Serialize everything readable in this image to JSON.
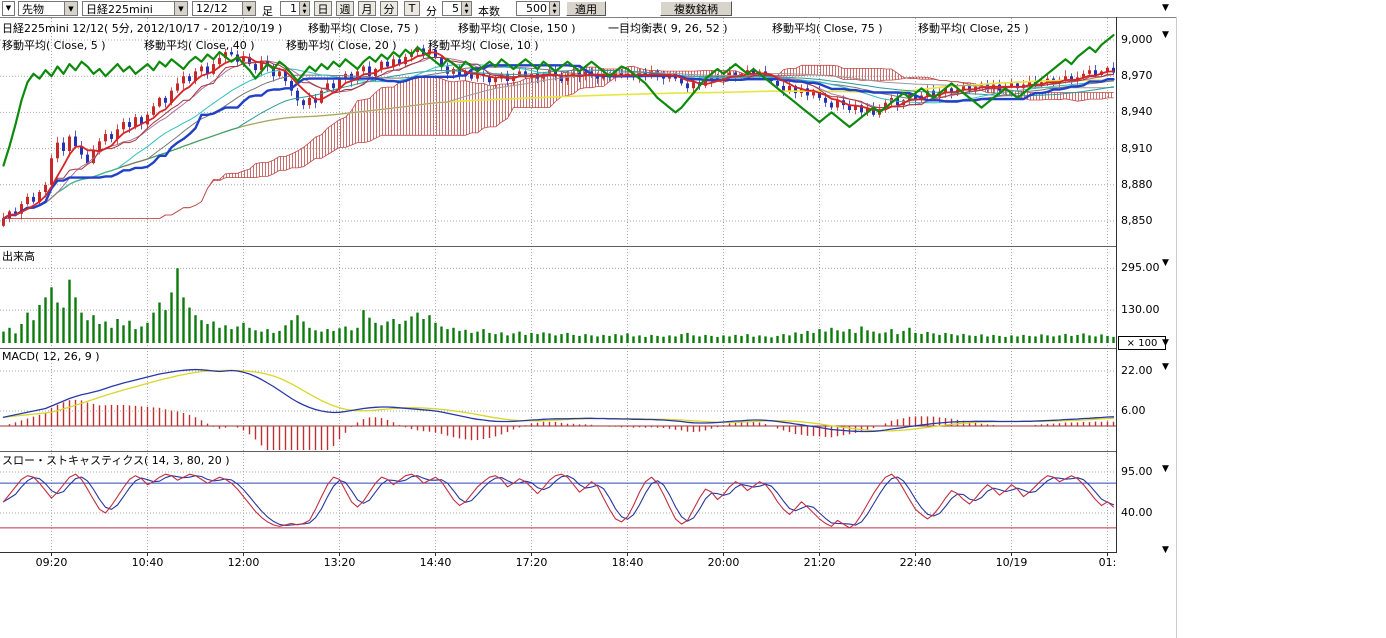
{
  "icons": {
    "down": "▼",
    "up": "▲"
  },
  "toolbar": {
    "category": "先物",
    "symbol": "日経225mini",
    "contract": "12/12",
    "bar_label": "足",
    "interval_value": "1",
    "units": [
      "日",
      "週",
      "月",
      "分"
    ],
    "tick_unit": "T",
    "minute_label": "分",
    "minute_value": "5",
    "count_label": "本数",
    "count_value": "500",
    "apply": "適用",
    "multi_symbol": "複数銘柄"
  },
  "price_panel": {
    "title": "日経225mini 12/12( 5分, 2012/10/17 - 2012/10/19 )",
    "legend_row1": [
      "移動平均( Close, 75 )",
      "移動平均( Close, 150 )",
      "一目均衡表( 9, 26, 52 )",
      "移動平均( Close, 75 )",
      "移動平均( Close, 25 )"
    ],
    "legend_row2": [
      "移動平均( Close, 5 )",
      "移動平均( Close, 40 )",
      "移動平均( Close, 20 )",
      "移動平均( Close, 10 )"
    ],
    "y_ticks": [
      "9,000",
      "8,970",
      "8,940",
      "8,910",
      "8,880",
      "8,850"
    ]
  },
  "volume_panel": {
    "label": "出来高",
    "y_ticks": [
      "295.00",
      "130.00"
    ],
    "multiplier": "× 100"
  },
  "macd_panel": {
    "label": "MACD( 12, 26, 9 )",
    "y_ticks": [
      "22.00",
      "6.00"
    ]
  },
  "stoch_panel": {
    "label": "スロー・ストキャスティクス( 14, 3, 80, 20 )",
    "y_ticks": [
      "95.00",
      "40.00"
    ]
  },
  "x_labels": [
    "09:20",
    "10:40",
    "12:00",
    "13:20",
    "14:40",
    "17:20",
    "18:40",
    "20:00",
    "21:20",
    "22:40",
    "10/19",
    "01:"
  ],
  "right_markers": [
    3,
    30,
    258,
    338,
    362,
    464,
    545
  ],
  "chart_data": {
    "type": "candlestick",
    "title": "日経225mini 12/12( 5分, 2012/10/17 - 2012/10/19 )",
    "price_axis": {
      "min": 8850,
      "max": 9000,
      "ticks": [
        9000,
        8970,
        8940,
        8910,
        8880,
        8850
      ]
    },
    "volume_axis": {
      "ticks": [
        295,
        130
      ],
      "multiplier": 100
    },
    "macd_axis": {
      "ticks": [
        22,
        6
      ]
    },
    "stoch_axis": {
      "ticks": [
        95,
        40
      ],
      "ref_lines": {
        "upper": 80,
        "lower": 20
      }
    },
    "close": [
      8852,
      8858,
      8856,
      8864,
      8870,
      8866,
      8874,
      8880,
      8902,
      8915,
      8908,
      8920,
      8912,
      8905,
      8898,
      8908,
      8916,
      8922,
      8918,
      8926,
      8932,
      8928,
      8936,
      8930,
      8938,
      8945,
      8952,
      8948,
      8958,
      8964,
      8970,
      8966,
      8974,
      8978,
      8972,
      8980,
      8985,
      8990,
      8988,
      8982,
      8986,
      8980,
      8975,
      8983,
      8978,
      8970,
      8974,
      8966,
      8958,
      8950,
      8946,
      8952,
      8948,
      8958,
      8964,
      8960,
      8968,
      8972,
      8966,
      8974,
      8978,
      8970,
      8976,
      8982,
      8978,
      8984,
      8980,
      8986,
      8990,
      8993,
      8988,
      8992,
      8985,
      8978,
      8972,
      8976,
      8970,
      8974,
      8968,
      8972,
      8970,
      8965,
      8968,
      8972,
      8966,
      8970,
      8974,
      8969,
      8972,
      8968,
      8972,
      8975,
      8970,
      8966,
      8970,
      8973,
      8970,
      8974,
      8971,
      8968,
      8972,
      8969,
      8973,
      8970,
      8972,
      8969,
      8973,
      8970,
      8974,
      8971,
      8968,
      8972,
      8968,
      8964,
      8960,
      8965,
      8962,
      8966,
      8970,
      8967,
      8970,
      8973,
      8969,
      8972,
      8975,
      8971,
      8974,
      8970,
      8966,
      8962,
      8958,
      8962,
      8956,
      8960,
      8954,
      8958,
      8952,
      8948,
      8944,
      8950,
      8946,
      8942,
      8946,
      8940,
      8944,
      8938,
      8942,
      8948,
      8952,
      8946,
      8950,
      8955,
      8950,
      8954,
      8958,
      8953,
      8957,
      8960,
      8956,
      8959,
      8962,
      8958,
      8961,
      8964,
      8960,
      8963,
      8958,
      8961,
      8964,
      8960,
      8963,
      8966,
      8962,
      8965,
      8968,
      8964,
      8967,
      8970,
      8966,
      8969,
      8972,
      8975,
      8971,
      8974,
      8977,
      8973
    ],
    "green_overlay": [
      8896,
      8912,
      8930,
      8950,
      8965,
      8972,
      8968,
      8975,
      8970,
      8978,
      8972,
      8980,
      8975,
      8982,
      8978,
      8972,
      8976,
      8970,
      8975,
      8980,
      8974,
      8978,
      8972,
      8976,
      8980,
      8975,
      8982,
      8978,
      8984,
      8980,
      8976,
      8982,
      8986,
      8982,
      8988,
      8984,
      8990,
      8986,
      8982,
      8986,
      8980,
      8975,
      8968,
      8974,
      8980,
      8976,
      8982,
      8978,
      8972,
      8966,
      8972,
      8978,
      8974,
      8980,
      8976,
      8982,
      8978,
      8984,
      8980,
      8976,
      8982,
      8986,
      8982,
      8988,
      8984,
      8990,
      8986,
      8992,
      8988,
      8994,
      8990,
      8986,
      8982,
      8978,
      8984,
      8980,
      8976,
      8982,
      8978,
      8974,
      8978,
      8982,
      8978,
      8984,
      8980,
      8976,
      8980,
      8984,
      8980,
      8976,
      8982,
      8978,
      8974,
      8978,
      8982,
      8978,
      8974,
      8978,
      8982,
      8978,
      8974,
      8970,
      8974,
      8978,
      8976,
      8972,
      8968,
      8964,
      8958,
      8952,
      8948,
      8944,
      8940,
      8944,
      8950,
      8956,
      8962,
      8968,
      8972,
      8976,
      8972,
      8976,
      8980,
      8976,
      8972,
      8976,
      8972,
      8968,
      8964,
      8960,
      8956,
      8952,
      8948,
      8944,
      8940,
      8936,
      8932,
      8936,
      8940,
      8936,
      8932,
      8928,
      8932,
      8936,
      8940,
      8944,
      8940,
      8944,
      8948,
      8952,
      8956,
      8952,
      8956,
      8960,
      8956,
      8952,
      8956,
      8960,
      8964,
      8960,
      8956,
      8952,
      8948,
      8944,
      8948,
      8952,
      8956,
      8960,
      8956,
      8952,
      8956,
      8960,
      8964,
      8968,
      8972,
      8976,
      8980,
      8984,
      8980,
      8986,
      8990,
      8994,
      8990,
      8996,
      9000,
      9004
    ],
    "volume": [
      45,
      60,
      38,
      75,
      120,
      90,
      150,
      180,
      220,
      160,
      140,
      250,
      180,
      120,
      90,
      110,
      75,
      85,
      60,
      95,
      70,
      88,
      55,
      65,
      80,
      120,
      160,
      130,
      200,
      295,
      180,
      140,
      110,
      90,
      75,
      85,
      60,
      70,
      55,
      65,
      80,
      60,
      50,
      45,
      55,
      40,
      48,
      70,
      90,
      110,
      85,
      60,
      50,
      45,
      55,
      48,
      58,
      65,
      50,
      60,
      130,
      100,
      80,
      70,
      85,
      95,
      75,
      88,
      105,
      120,
      95,
      110,
      80,
      65,
      55,
      60,
      48,
      52,
      40,
      45,
      55,
      40,
      35,
      42,
      30,
      38,
      45,
      32,
      40,
      35,
      42,
      38,
      30,
      35,
      40,
      32,
      28,
      35,
      30,
      26,
      32,
      28,
      35,
      30,
      38,
      26,
      30,
      24,
      32,
      28,
      25,
      30,
      26,
      35,
      40,
      30,
      26,
      32,
      28,
      24,
      30,
      26,
      32,
      28,
      35,
      25,
      30,
      26,
      22,
      28,
      35,
      30,
      42,
      36,
      48,
      40,
      55,
      45,
      60,
      50,
      45,
      55,
      40,
      65,
      50,
      45,
      38,
      42,
      55,
      35,
      48,
      60,
      40,
      36,
      44,
      38,
      32,
      40,
      35,
      30,
      36,
      30,
      28,
      34,
      26,
      32,
      28,
      24,
      30,
      26,
      32,
      28,
      26,
      34,
      30,
      26,
      30,
      36,
      28,
      32,
      38,
      30,
      26,
      34,
      28,
      24
    ],
    "macd": [
      3.5,
      4,
      4.5,
      5,
      5.5,
      6,
      6.5,
      7,
      8,
      9,
      10,
      11,
      11.8,
      12.5,
      13,
      13.6,
      14.2,
      15,
      15.8,
      16.5,
      17.2,
      17.8,
      18.4,
      19,
      19.6,
      20.2,
      20.8,
      21.2,
      21.6,
      22,
      22.3,
      22.5,
      22.6,
      22.5,
      22.3,
      22,
      21.8,
      22,
      22.2,
      22,
      21.5,
      20.8,
      19.8,
      18.6,
      17.2,
      15.8,
      14.2,
      12.6,
      11,
      9.6,
      8.4,
      7.4,
      6.6,
      6,
      5.6,
      5.4,
      5.5,
      5.8,
      6.2,
      6.6,
      7,
      7.3,
      7.5,
      7.6,
      7.6,
      7.5,
      7.3,
      7.1,
      6.9,
      6.7,
      6.5,
      6.3,
      6,
      5.6,
      5.1,
      4.6,
      4.1,
      3.6,
      3.1,
      2.7,
      2.4,
      2.1,
      1.9,
      1.8,
      1.8,
      1.9,
      2,
      2.2,
      2.4,
      2.5,
      2.7,
      2.8,
      2.9,
      2.9,
      2.9,
      3,
      3,
      3.1,
      3.1,
      3,
      3,
      2.9,
      2.9,
      2.8,
      2.8,
      2.7,
      2.7,
      2.6,
      2.6,
      2.5,
      2.4,
      2.2,
      2,
      1.8,
      1.5,
      1.3,
      1.2,
      1.2,
      1.3,
      1.4,
      1.6,
      1.8,
      2,
      2.1,
      2.3,
      2.4,
      2.4,
      2.3,
      2.1,
      1.8,
      1.5,
      1.2,
      0.8,
      0.5,
      0.1,
      -0.2,
      -0.6,
      -1,
      -1.4,
      -1.6,
      -1.8,
      -2,
      -2.1,
      -2.2,
      -2.2,
      -2.1,
      -1.9,
      -1.6,
      -1.2,
      -0.9,
      -0.6,
      -0.2,
      0.1,
      0.4,
      0.7,
      1,
      1.2,
      1.4,
      1.6,
      1.7,
      1.8,
      1.8,
      1.9,
      1.9,
      1.9,
      1.9,
      1.8,
      1.8,
      1.8,
      1.8,
      1.9,
      1.9,
      2,
      2.1,
      2.2,
      2.3,
      2.4,
      2.6,
      2.7,
      2.8,
      3,
      3.1,
      3.3,
      3.4,
      3.6,
      3.7
    ],
    "stoch_k": [
      55,
      65,
      75,
      85,
      90,
      88,
      80,
      70,
      60,
      68,
      78,
      88,
      92,
      85,
      72,
      58,
      45,
      40,
      50,
      62,
      74,
      85,
      90,
      86,
      78,
      82,
      88,
      92,
      90,
      84,
      88,
      92,
      90,
      85,
      80,
      84,
      88,
      85,
      80,
      72,
      62,
      52,
      42,
      34,
      28,
      24,
      22,
      24,
      26,
      24,
      26,
      30,
      45,
      62,
      78,
      88,
      85,
      70,
      55,
      48,
      56,
      68,
      80,
      88,
      85,
      78,
      84,
      90,
      92,
      88,
      80,
      84,
      88,
      82,
      70,
      58,
      50,
      55,
      65,
      75,
      82,
      88,
      90,
      85,
      75,
      80,
      86,
      82,
      74,
      66,
      74,
      84,
      90,
      92,
      88,
      78,
      68,
      74,
      82,
      76,
      60,
      45,
      32,
      28,
      35,
      50,
      68,
      82,
      88,
      80,
      65,
      48,
      32,
      25,
      30,
      45,
      60,
      72,
      68,
      58,
      65,
      75,
      82,
      78,
      70,
      76,
      82,
      78,
      68,
      55,
      45,
      38,
      46,
      55,
      48,
      40,
      32,
      26,
      22,
      30,
      25,
      20,
      26,
      38,
      52,
      66,
      78,
      88,
      92,
      85,
      72,
      58,
      45,
      38,
      32,
      38,
      48,
      60,
      70,
      66,
      58,
      52,
      60,
      70,
      78,
      72,
      64,
      70,
      78,
      72,
      62,
      68,
      76,
      84,
      90,
      88,
      82,
      86,
      90,
      86,
      78,
      68,
      58,
      50,
      55,
      48
    ]
  }
}
